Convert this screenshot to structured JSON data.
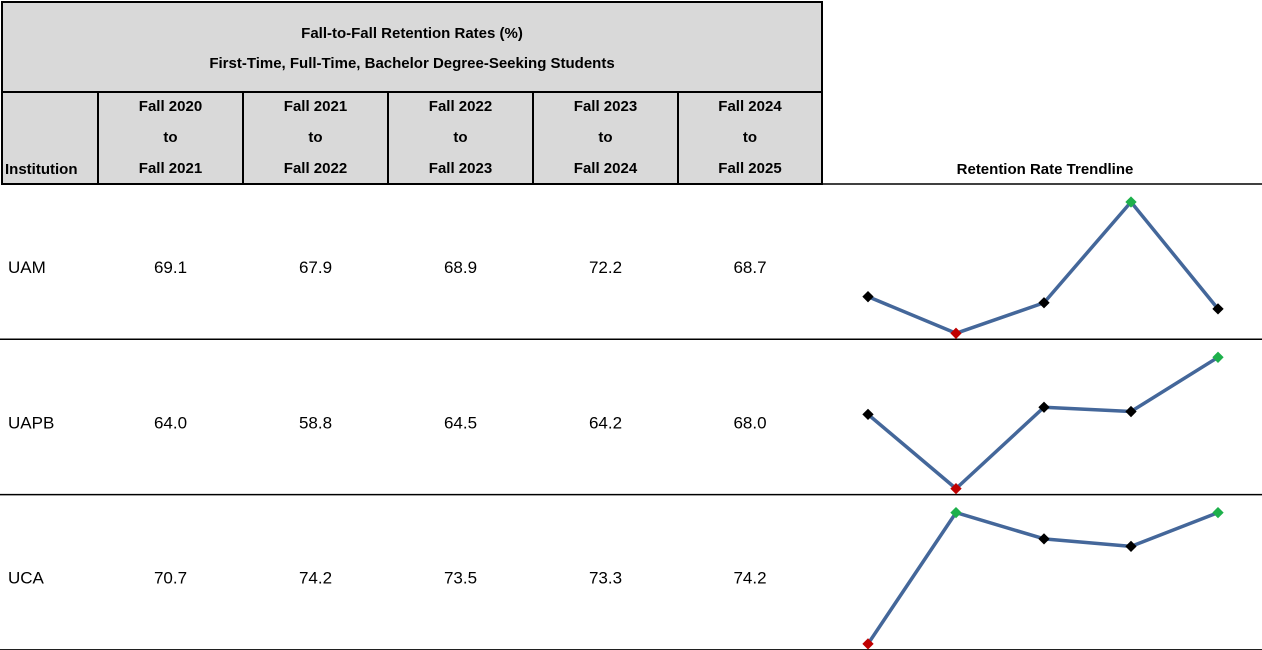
{
  "table": {
    "title": [
      "Fall-to-Fall Retention Rates (%)",
      "First-Time, Full-Time, Bachelor Degree-Seeking Students"
    ],
    "institution_header": "Institution",
    "columns": [
      [
        "Fall 2020",
        "to",
        "Fall 2021"
      ],
      [
        "Fall 2021",
        "to",
        "Fall 2022"
      ],
      [
        "Fall 2022",
        "to",
        "Fall 2023"
      ],
      [
        "Fall 2023",
        "to",
        "Fall 2024"
      ],
      [
        "Fall 2024",
        "to",
        "Fall 2025"
      ]
    ],
    "trend_header": "Retention Rate Trendline",
    "rows": [
      {
        "institution": "UAM",
        "values": [
          69.1,
          67.9,
          68.9,
          72.2,
          68.7
        ],
        "value_labels": [
          "69.1",
          "67.9",
          "68.9",
          "72.2",
          "68.7"
        ]
      },
      {
        "institution": "UAPB",
        "values": [
          64.0,
          58.8,
          64.5,
          64.2,
          68.0
        ],
        "value_labels": [
          "64.0",
          "58.8",
          "64.5",
          "64.2",
          "68.0"
        ]
      },
      {
        "institution": "UCA",
        "values": [
          70.7,
          74.2,
          73.5,
          73.3,
          74.2
        ],
        "value_labels": [
          "70.7",
          "74.2",
          "73.5",
          "73.3",
          "74.2"
        ]
      }
    ],
    "line_color": "#44679a",
    "marker_color": "#000000",
    "high_color": "#1db04b",
    "low_color": "#c00000"
  }
}
